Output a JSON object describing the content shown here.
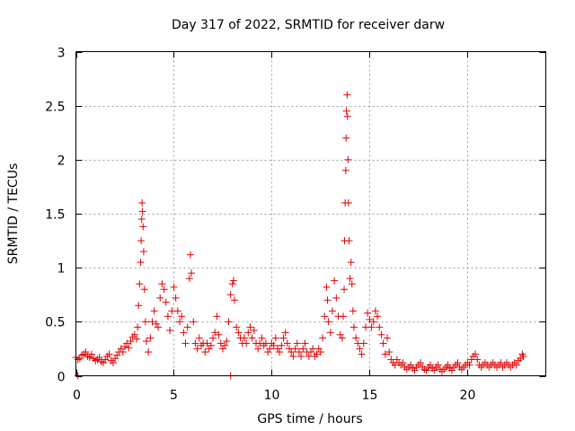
{
  "chart_data": {
    "type": "scatter",
    "title": "Day 317 of 2022, SRMTID for receiver darw",
    "xlabel": "GPS time / hours",
    "ylabel": "SRMTID / TECUs",
    "xlim": [
      0,
      24
    ],
    "ylim": [
      0,
      3
    ],
    "xticks": [
      0,
      5,
      10,
      15,
      20
    ],
    "xtick_labels": [
      "0",
      "5",
      "10",
      "15",
      "20"
    ],
    "yticks": [
      0,
      0.5,
      1,
      1.5,
      2,
      2.5,
      3
    ],
    "ytick_labels": [
      "0",
      "0.5",
      "1",
      "1.5",
      "2",
      "2.5",
      "3"
    ],
    "grid": true,
    "marker": "plus",
    "series": [
      {
        "name": "SRMTID",
        "color": "#e00000",
        "points": [
          [
            0.0,
            0.17
          ],
          [
            0.1,
            0.15
          ],
          [
            0.2,
            0.16
          ],
          [
            0.3,
            0.19
          ],
          [
            0.4,
            0.2
          ],
          [
            0.5,
            0.22
          ],
          [
            0.6,
            0.18
          ],
          [
            0.7,
            0.17
          ],
          [
            0.8,
            0.2
          ],
          [
            0.9,
            0.16
          ],
          [
            1.0,
            0.14
          ],
          [
            1.1,
            0.15
          ],
          [
            1.2,
            0.17
          ],
          [
            1.3,
            0.13
          ],
          [
            1.4,
            0.12
          ],
          [
            1.5,
            0.15
          ],
          [
            1.6,
            0.18
          ],
          [
            1.7,
            0.2
          ],
          [
            1.8,
            0.14
          ],
          [
            1.9,
            0.12
          ],
          [
            2.0,
            0.16
          ],
          [
            2.1,
            0.19
          ],
          [
            2.2,
            0.22
          ],
          [
            2.3,
            0.25
          ],
          [
            2.4,
            0.22
          ],
          [
            2.5,
            0.27
          ],
          [
            2.6,
            0.3
          ],
          [
            2.7,
            0.26
          ],
          [
            2.8,
            0.32
          ],
          [
            2.9,
            0.36
          ],
          [
            3.0,
            0.38
          ],
          [
            3.1,
            0.34
          ],
          [
            3.15,
            0.45
          ],
          [
            3.2,
            0.65
          ],
          [
            3.25,
            0.85
          ],
          [
            3.3,
            1.05
          ],
          [
            3.33,
            1.25
          ],
          [
            3.36,
            1.45
          ],
          [
            3.38,
            1.6
          ],
          [
            3.4,
            1.52
          ],
          [
            3.43,
            1.38
          ],
          [
            3.46,
            1.15
          ],
          [
            3.5,
            0.8
          ],
          [
            3.55,
            0.5
          ],
          [
            3.6,
            0.32
          ],
          [
            3.7,
            0.22
          ],
          [
            3.8,
            0.35
          ],
          [
            3.9,
            0.5
          ],
          [
            4.0,
            0.6
          ],
          [
            4.1,
            0.48
          ],
          [
            4.2,
            0.45
          ],
          [
            4.3,
            0.72
          ],
          [
            4.4,
            0.85
          ],
          [
            4.5,
            0.8
          ],
          [
            4.6,
            0.68
          ],
          [
            4.7,
            0.55
          ],
          [
            4.8,
            0.42
          ],
          [
            4.9,
            0.6
          ],
          [
            5.0,
            0.82
          ],
          [
            5.1,
            0.72
          ],
          [
            5.2,
            0.6
          ],
          [
            5.3,
            0.5
          ],
          [
            5.4,
            0.55
          ],
          [
            5.5,
            0.4
          ],
          [
            5.6,
            0.3
          ],
          [
            5.7,
            0.45
          ],
          [
            5.8,
            0.9
          ],
          [
            5.85,
            1.12
          ],
          [
            5.9,
            0.95
          ],
          [
            6.0,
            0.5
          ],
          [
            6.1,
            0.3
          ],
          [
            6.2,
            0.25
          ],
          [
            6.3,
            0.35
          ],
          [
            6.4,
            0.28
          ],
          [
            6.5,
            0.3
          ],
          [
            6.6,
            0.22
          ],
          [
            6.7,
            0.3
          ],
          [
            6.8,
            0.25
          ],
          [
            6.9,
            0.28
          ],
          [
            7.0,
            0.35
          ],
          [
            7.1,
            0.4
          ],
          [
            7.2,
            0.55
          ],
          [
            7.3,
            0.38
          ],
          [
            7.4,
            0.3
          ],
          [
            7.5,
            0.25
          ],
          [
            7.6,
            0.28
          ],
          [
            7.7,
            0.32
          ],
          [
            7.8,
            0.5
          ],
          [
            7.9,
            0.75
          ],
          [
            8.0,
            0.85
          ],
          [
            8.05,
            0.88
          ],
          [
            8.1,
            0.7
          ],
          [
            8.2,
            0.45
          ],
          [
            8.3,
            0.4
          ],
          [
            8.4,
            0.35
          ],
          [
            8.5,
            0.3
          ],
          [
            8.6,
            0.35
          ],
          [
            8.7,
            0.3
          ],
          [
            8.8,
            0.4
          ],
          [
            8.9,
            0.45
          ],
          [
            9.0,
            0.35
          ],
          [
            9.1,
            0.42
          ],
          [
            9.2,
            0.3
          ],
          [
            9.3,
            0.25
          ],
          [
            9.4,
            0.3
          ],
          [
            9.5,
            0.35
          ],
          [
            9.6,
            0.28
          ],
          [
            9.7,
            0.3
          ],
          [
            9.8,
            0.22
          ],
          [
            9.9,
            0.25
          ],
          [
            10.0,
            0.3
          ],
          [
            10.1,
            0.28
          ],
          [
            10.2,
            0.35
          ],
          [
            10.3,
            0.25
          ],
          [
            10.4,
            0.22
          ],
          [
            10.5,
            0.28
          ],
          [
            10.6,
            0.35
          ],
          [
            10.7,
            0.4
          ],
          [
            10.8,
            0.3
          ],
          [
            10.9,
            0.25
          ],
          [
            11.0,
            0.22
          ],
          [
            11.1,
            0.18
          ],
          [
            11.2,
            0.25
          ],
          [
            11.3,
            0.3
          ],
          [
            11.4,
            0.22
          ],
          [
            11.5,
            0.18
          ],
          [
            11.6,
            0.25
          ],
          [
            11.7,
            0.3
          ],
          [
            11.8,
            0.22
          ],
          [
            11.9,
            0.18
          ],
          [
            12.0,
            0.22
          ],
          [
            12.1,
            0.25
          ],
          [
            12.2,
            0.18
          ],
          [
            12.3,
            0.2
          ],
          [
            12.4,
            0.25
          ],
          [
            12.5,
            0.22
          ],
          [
            12.6,
            0.35
          ],
          [
            12.7,
            0.55
          ],
          [
            12.8,
            0.82
          ],
          [
            12.85,
            0.7
          ],
          [
            12.9,
            0.5
          ],
          [
            13.0,
            0.4
          ],
          [
            13.1,
            0.6
          ],
          [
            13.2,
            0.88
          ],
          [
            13.3,
            0.72
          ],
          [
            13.4,
            0.55
          ],
          [
            13.5,
            0.38
          ],
          [
            13.6,
            0.35
          ],
          [
            13.65,
            0.55
          ],
          [
            13.7,
            0.8
          ],
          [
            13.72,
            1.25
          ],
          [
            13.75,
            1.6
          ],
          [
            13.78,
            1.9
          ],
          [
            13.8,
            2.2
          ],
          [
            13.82,
            2.45
          ],
          [
            13.85,
            2.6
          ],
          [
            13.87,
            2.4
          ],
          [
            13.9,
            2.0
          ],
          [
            13.92,
            1.6
          ],
          [
            13.95,
            1.25
          ],
          [
            14.0,
            0.9
          ],
          [
            14.05,
            1.05
          ],
          [
            14.1,
            0.85
          ],
          [
            14.15,
            0.6
          ],
          [
            14.2,
            0.45
          ],
          [
            14.3,
            0.35
          ],
          [
            14.4,
            0.3
          ],
          [
            14.5,
            0.25
          ],
          [
            14.6,
            0.2
          ],
          [
            14.7,
            0.3
          ],
          [
            14.8,
            0.45
          ],
          [
            14.9,
            0.58
          ],
          [
            15.0,
            0.52
          ],
          [
            15.1,
            0.45
          ],
          [
            15.2,
            0.5
          ],
          [
            15.3,
            0.6
          ],
          [
            15.4,
            0.55
          ],
          [
            15.5,
            0.45
          ],
          [
            15.6,
            0.38
          ],
          [
            15.7,
            0.3
          ],
          [
            15.8,
            0.2
          ],
          [
            15.9,
            0.35
          ],
          [
            16.0,
            0.22
          ],
          [
            16.1,
            0.15
          ],
          [
            16.2,
            0.12
          ],
          [
            16.3,
            0.1
          ],
          [
            16.4,
            0.15
          ],
          [
            16.5,
            0.12
          ],
          [
            16.6,
            0.1
          ],
          [
            16.7,
            0.12
          ],
          [
            16.8,
            0.08
          ],
          [
            16.9,
            0.06
          ],
          [
            17.0,
            0.08
          ],
          [
            17.1,
            0.1
          ],
          [
            17.2,
            0.07
          ],
          [
            17.3,
            0.05
          ],
          [
            17.4,
            0.08
          ],
          [
            17.5,
            0.1
          ],
          [
            17.6,
            0.12
          ],
          [
            17.7,
            0.08
          ],
          [
            17.8,
            0.06
          ],
          [
            17.9,
            0.05
          ],
          [
            18.0,
            0.08
          ],
          [
            18.1,
            0.1
          ],
          [
            18.2,
            0.07
          ],
          [
            18.3,
            0.05
          ],
          [
            18.4,
            0.08
          ],
          [
            18.5,
            0.1
          ],
          [
            18.6,
            0.06
          ],
          [
            18.7,
            0.04
          ],
          [
            18.8,
            0.06
          ],
          [
            18.9,
            0.08
          ],
          [
            19.0,
            0.1
          ],
          [
            19.1,
            0.07
          ],
          [
            19.2,
            0.05
          ],
          [
            19.3,
            0.08
          ],
          [
            19.4,
            0.1
          ],
          [
            19.5,
            0.12
          ],
          [
            19.6,
            0.08
          ],
          [
            19.7,
            0.06
          ],
          [
            19.8,
            0.08
          ],
          [
            19.9,
            0.1
          ],
          [
            20.0,
            0.12
          ],
          [
            20.1,
            0.1
          ],
          [
            20.2,
            0.15
          ],
          [
            20.3,
            0.18
          ],
          [
            20.4,
            0.2
          ],
          [
            20.5,
            0.15
          ],
          [
            20.6,
            0.1
          ],
          [
            20.7,
            0.08
          ],
          [
            20.8,
            0.1
          ],
          [
            20.9,
            0.12
          ],
          [
            21.0,
            0.1
          ],
          [
            21.1,
            0.08
          ],
          [
            21.2,
            0.1
          ],
          [
            21.3,
            0.12
          ],
          [
            21.4,
            0.1
          ],
          [
            21.5,
            0.08
          ],
          [
            21.6,
            0.1
          ],
          [
            21.7,
            0.12
          ],
          [
            21.8,
            0.08
          ],
          [
            21.9,
            0.1
          ],
          [
            22.0,
            0.12
          ],
          [
            22.1,
            0.1
          ],
          [
            22.2,
            0.08
          ],
          [
            22.3,
            0.1
          ],
          [
            22.4,
            0.12
          ],
          [
            22.5,
            0.1
          ],
          [
            22.6,
            0.14
          ],
          [
            22.7,
            0.16
          ],
          [
            22.8,
            0.2
          ],
          [
            22.85,
            0.18
          ],
          [
            0.1,
            0.0
          ],
          [
            7.9,
            0.0
          ]
        ]
      }
    ]
  }
}
